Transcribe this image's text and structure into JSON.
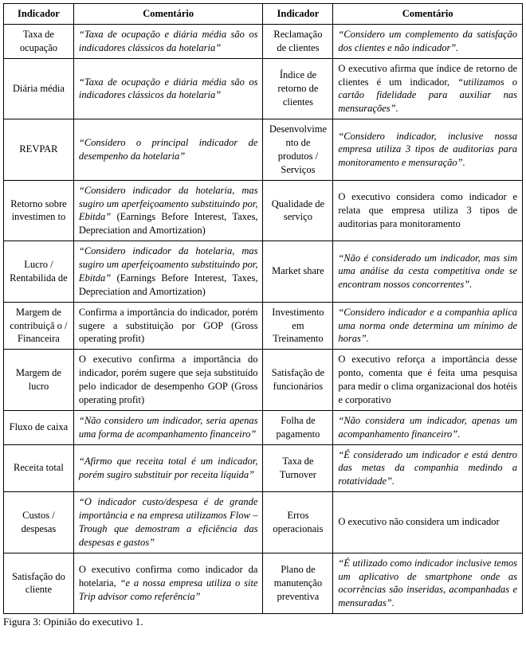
{
  "headers": {
    "ind1": "Indicador",
    "com1": "Comentário",
    "ind2": "Indicador",
    "com2": "Comentário"
  },
  "caption": "Figura 3: Opinião do executivo 1.",
  "rows": [
    {
      "ind1": "Taxa de ocupação",
      "com1": "<span class=\"italic\">“Taxa de ocupação e diária média são os indicadores clássicos da hotelaria”</span>",
      "ind2": "Reclamação de clientes",
      "com2": "<span class=\"italic\">“Considero um complemento da satisfação dos clientes e não indicador”.</span>"
    },
    {
      "ind1": "Diária média",
      "com1": "<span class=\"italic\">“Taxa de ocupação e diária média são os indicadores clássicos da hotelaria”</span>",
      "ind2": "Índice de retorno de clientes",
      "com2": "O executivo afirma que índice de retorno de clientes é um indicador, <span class=\"italic\">“utilizamos o cartão fidelidade para auxiliar nas mensurações”.</span>"
    },
    {
      "ind1": "REVPAR",
      "com1": "<span class=\"italic\">“Considero o principal indicador de desempenho da hotelaria”</span>",
      "ind2": "Desenvolvime nto de produtos / Serviços",
      "com2": "<span class=\"italic\">“Considero indicador, inclusive nossa empresa utiliza 3 tipos de auditorias para monitoramento e mensuração”.</span>"
    },
    {
      "ind1": "Retorno sobre investimen to",
      "com1": "<span class=\"italic\">“Considero indicador da hotelaria, mas sugiro um aperfeiçoamento substituindo por, Ebitda”</span> (Earnings Before Interest, Taxes, Depreciation and Amortization)",
      "ind2": "Qualidade de serviço",
      "com2": "O executivo considera como indicador e relata que empresa utiliza 3 tipos de auditorias para monitoramento"
    },
    {
      "ind1": "Lucro / Rentabilida de",
      "com1": "<span class=\"italic\">“Considero indicador da hotelaria, mas sugiro um aperfeiçoamento substituindo por, Ebitda”</span> (Earnings Before Interest, Taxes, Depreciation and Amortization)",
      "ind2": "Market share",
      "com2": "<span class=\"italic\">“Não é considerado um indicador, mas sim uma análise da cesta competitiva onde se encontram nossos concorrentes”.</span>"
    },
    {
      "ind1": "Margem de contribuiçã o / Financeira",
      "com1": "Confirma a importância do indicador, porém sugere a substituição por GOP (Gross operating profit)",
      "ind2": "Investimento em Treinamento",
      "com2": "<span class=\"italic\">“Considero indicador e a companhia aplica uma norma onde determina um mínimo de horas”.</span>"
    },
    {
      "ind1": "Margem de lucro",
      "com1": "O executivo confirma a importância do indicador, porém sugere que seja substituído pelo indicador de desempenho GOP (Gross operating profit)",
      "ind2": "Satisfação de funcionários",
      "com2": "O executivo reforça a importância desse ponto, comenta que é feita uma pesquisa para medir o clima organizacional dos hotéis e corporativo"
    },
    {
      "ind1": "Fluxo de caixa",
      "com1": "<span class=\"italic\">“Não considero um indicador, seria apenas uma forma de acompanhamento financeiro”</span>",
      "ind2": "Folha de pagamento",
      "com2": "<span class=\"italic\">“Não considera um indicador, apenas um acompanhamento financeiro”.</span>"
    },
    {
      "ind1": "Receita total",
      "com1": "<span class=\"italic\">“Afirmo que receita total é um indicador, porém sugiro substituir por receita líquida”</span>",
      "ind2": "Taxa de Turnover",
      "com2": "<span class=\"italic\">“É considerado um indicador e está dentro das metas da companhia medindo a rotatividade”.</span>"
    },
    {
      "ind1": "Custos / despesas",
      "com1": "<span class=\"italic\">“O indicador custo/despesa é de grande importância e na empresa utilizamos Flow – Trough que demostram a eficiência das despesas e gastos”</span>",
      "ind2": "Erros operacionais",
      "com2": "O executivo não considera um indicador"
    },
    {
      "ind1": "Satisfação do cliente",
      "com1": "O executivo confirma como indicador da hotelaria, <span class=\"italic\">“e a nossa empresa utiliza o site Trip advisor como referência”</span>",
      "ind2": "Plano de manutenção preventiva",
      "com2": "<span class=\"italic\">“É utilizado como indicador inclusive temos um aplicativo de smartphone onde as ocorrências são inseridas, acompanhadas e mensuradas”.</span>"
    }
  ]
}
